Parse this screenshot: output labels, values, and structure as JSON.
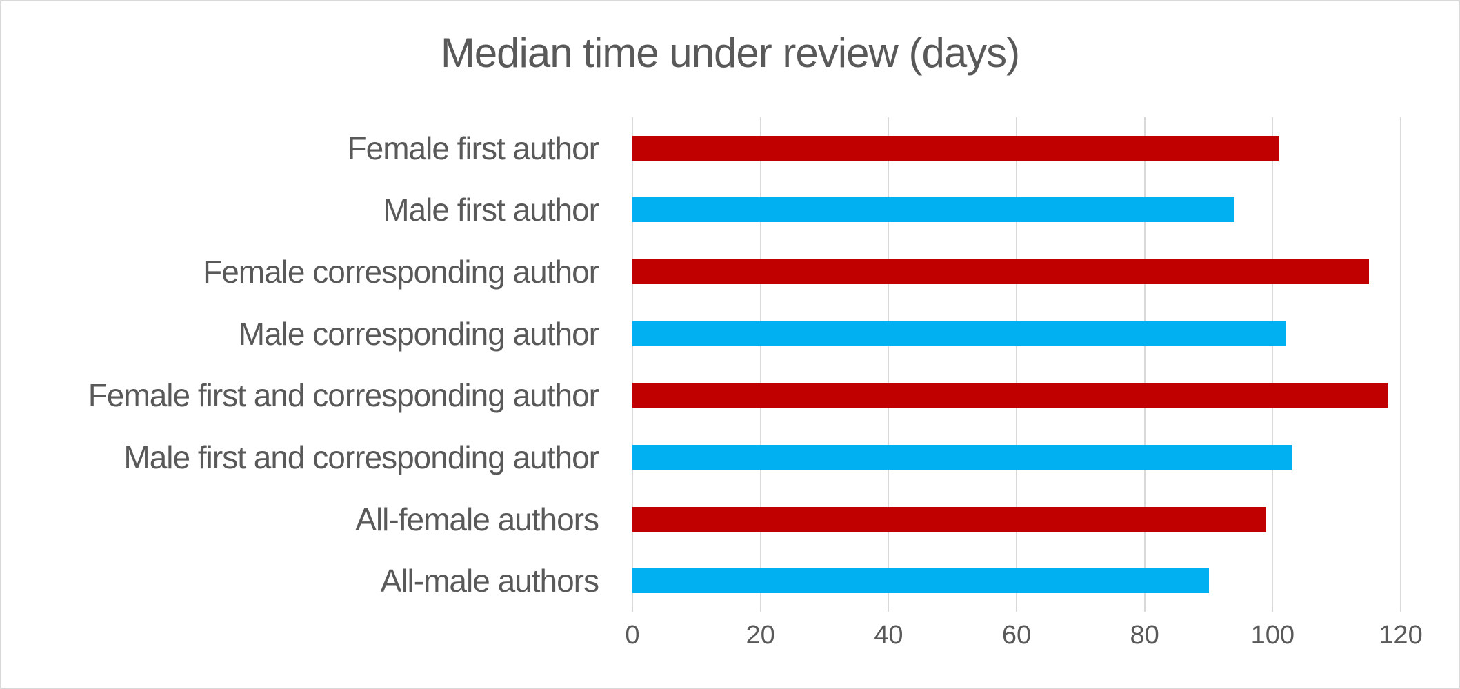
{
  "chart_data": {
    "type": "bar",
    "orientation": "horizontal",
    "title": "Median time under review (days)",
    "categories": [
      "Female first author",
      "Male first author",
      "Female corresponding author",
      "Male corresponding author",
      "Female first and corresponding author",
      "Male first and corresponding author",
      "All-female authors",
      "All-male authors"
    ],
    "values": [
      101,
      94,
      115,
      102,
      118,
      103,
      99,
      90
    ],
    "bar_colors": [
      "#C00000",
      "#00B0F0",
      "#C00000",
      "#00B0F0",
      "#C00000",
      "#00B0F0",
      "#C00000",
      "#00B0F0"
    ],
    "xlabel": "",
    "ylabel": "",
    "xlim": [
      0,
      120
    ],
    "x_ticks": [
      0,
      20,
      40,
      60,
      80,
      100,
      120
    ],
    "grid": true,
    "legend": "none"
  },
  "colors": {
    "female_bar": "#C00000",
    "male_bar": "#00B0F0",
    "text": "#595959",
    "gridline": "#d9d9d9",
    "chart_border": "#d9d9d9",
    "background": "#ffffff"
  }
}
